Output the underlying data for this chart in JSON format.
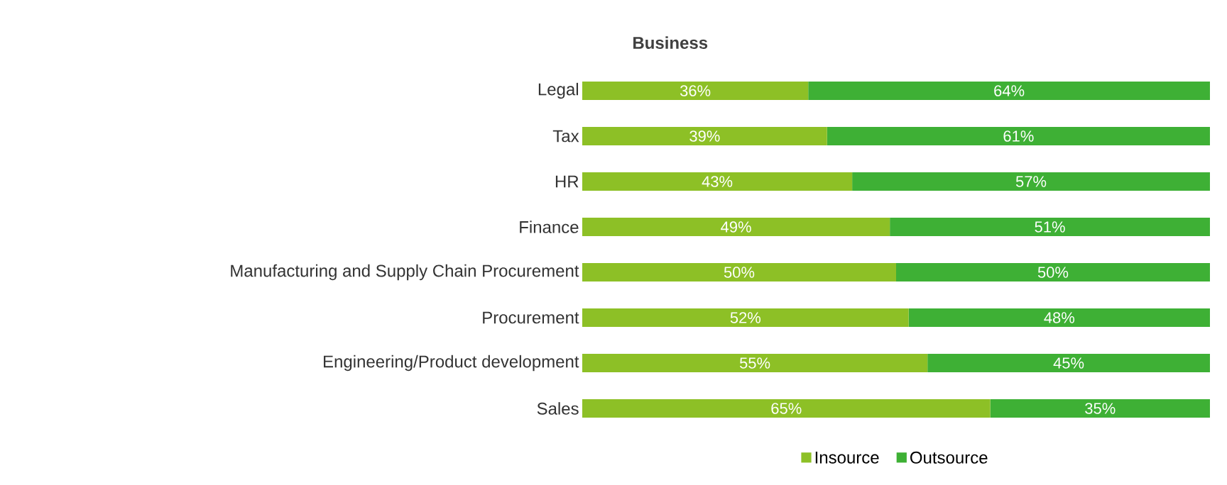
{
  "chart_data": {
    "type": "bar",
    "title": "Business",
    "orientation": "horizontal",
    "stacked": true,
    "categories": [
      "Legal",
      "Tax",
      "HR",
      "Finance",
      "Manufacturing and Supply Chain Procurement",
      "Procurement",
      "Engineering/Product development",
      "Sales"
    ],
    "tick_labels": "y",
    "legend": "bottom",
    "series": [
      {
        "name": "Insource",
        "color": "#8dc026",
        "values": [
          36,
          39,
          43,
          49,
          50,
          52,
          55,
          65
        ],
        "value_labels": [
          "36%",
          "39%",
          "43%",
          "49%",
          "50%",
          "52%",
          "55%",
          "65%"
        ]
      },
      {
        "name": "Outsource",
        "color": "#3eb035",
        "values": [
          64,
          61,
          57,
          51,
          50,
          48,
          45,
          35
        ],
        "value_labels": [
          "64%",
          "61%",
          "57%",
          "51%",
          "50%",
          "48%",
          "45%",
          "35%"
        ]
      }
    ]
  }
}
